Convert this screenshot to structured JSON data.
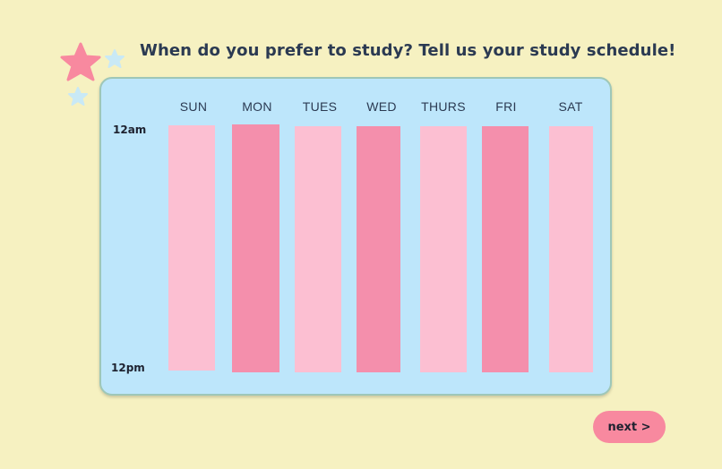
{
  "header": {
    "title": "When do you prefer to study? Tell us your study schedule!"
  },
  "schedule": {
    "days": [
      "SUN",
      "MON",
      "TUES",
      "WED",
      "THURS",
      "FRI",
      "SAT"
    ],
    "time_labels": {
      "start": "12am",
      "end": "12pm"
    }
  },
  "footer": {
    "next_label": "next >"
  },
  "colors": {
    "background": "#f6f1c1",
    "panel": "#bde6fb",
    "column_light": "#fcbfd2",
    "column_dark": "#f48fac",
    "next_button": "#f8899f",
    "star_pink": "#f8899f",
    "star_blue": "#c9e9f6"
  },
  "icons": [
    "star-icon-large",
    "star-icon-small-right",
    "star-icon-small-bottom"
  ]
}
